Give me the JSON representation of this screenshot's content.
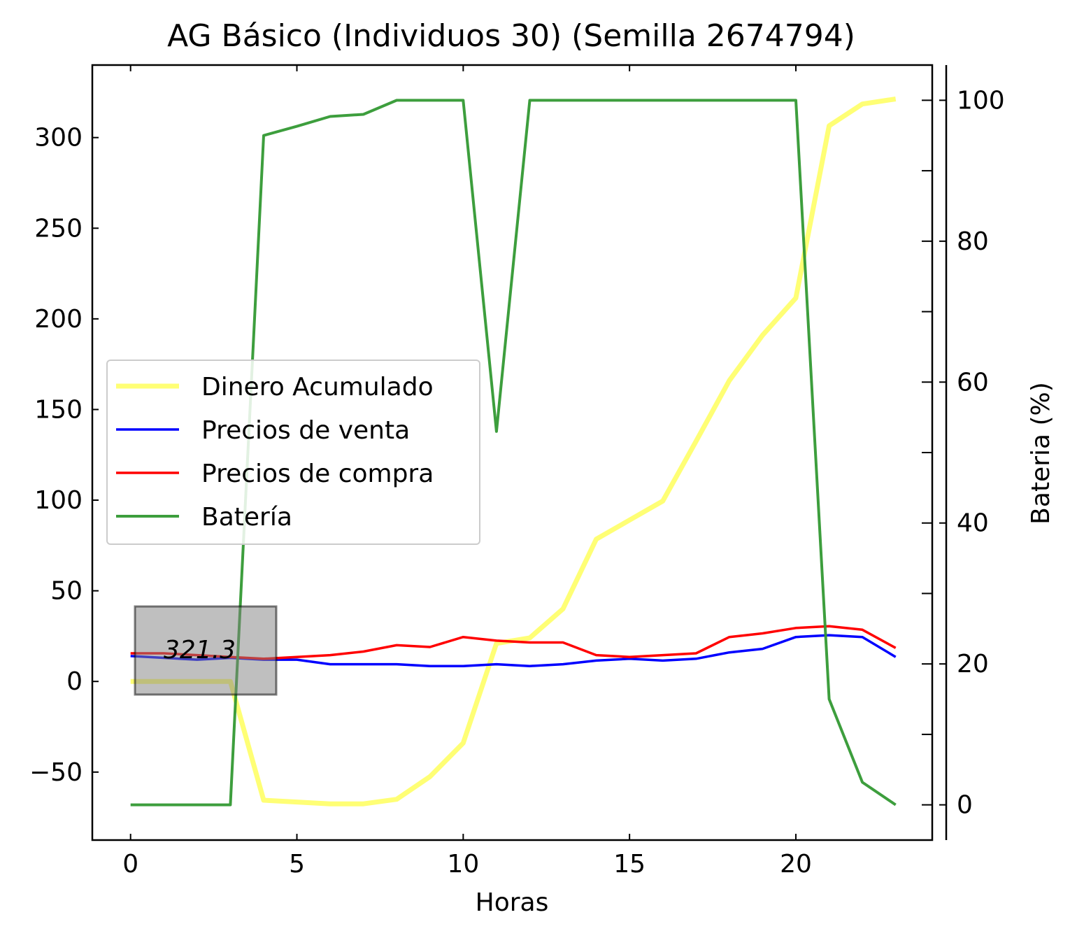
{
  "chart_data": {
    "type": "line",
    "title": "AG Básico (Individuos 30) (Semilla 2674794)",
    "xlabel": "Horas",
    "ylabel": "",
    "y2label": "Bateria (%)",
    "xlim": [
      -1.15,
      24.1
    ],
    "ylim": [
      -87.5,
      340
    ],
    "y2lim": [
      -5,
      105
    ],
    "xticks": [
      0,
      5,
      10,
      15,
      20
    ],
    "yticks": [
      -50,
      0,
      50,
      100,
      150,
      200,
      250,
      300
    ],
    "y2ticks": [
      0,
      20,
      40,
      60,
      80,
      100
    ],
    "y2minor_ticks": [
      10,
      30,
      50,
      70,
      90
    ],
    "x": [
      0,
      1,
      2,
      3,
      4,
      5,
      6,
      7,
      8,
      9,
      10,
      11,
      12,
      13,
      14,
      15,
      16,
      17,
      18,
      19,
      20,
      21,
      22,
      23
    ],
    "series": [
      {
        "name": "Dinero Acumulado",
        "axis": "left",
        "color": "#ffff66",
        "values": [
          0,
          0,
          0,
          0,
          -65.5,
          -66.5,
          -67.5,
          -67.5,
          -65,
          -52.5,
          -34,
          21,
          24,
          40,
          78.5,
          89,
          99.5,
          132.5,
          166,
          191,
          211.5,
          306.5,
          318.5,
          321.3
        ]
      },
      {
        "name": "Precios de venta",
        "axis": "left",
        "color": "#0000ff",
        "values": [
          14,
          13,
          12,
          13,
          12,
          12,
          9.5,
          9.5,
          9.5,
          8.5,
          8.5,
          9.5,
          8.5,
          9.5,
          11.5,
          12.5,
          11.5,
          12.5,
          16,
          18,
          24.5,
          25.5,
          24.5,
          13.5
        ]
      },
      {
        "name": "Precios de compra",
        "axis": "left",
        "color": "#ff0000",
        "values": [
          15.5,
          15.5,
          14.5,
          13.5,
          12.5,
          13.5,
          14.5,
          16.5,
          20,
          19,
          24.5,
          22.5,
          21.5,
          21.5,
          14.5,
          13.5,
          14.5,
          15.5,
          24.5,
          26.5,
          29.5,
          30.5,
          28.5,
          18.5
        ]
      },
      {
        "name": "Batería",
        "axis": "right",
        "color": "#339933",
        "values": [
          0,
          0,
          0,
          0,
          95,
          96.3,
          97.7,
          98,
          100,
          100,
          100,
          53,
          100,
          100,
          100,
          100,
          100,
          100,
          100,
          100,
          100,
          15,
          3.2,
          0
        ]
      }
    ],
    "annotation": {
      "text": "321.3",
      "box_color": "#808080",
      "x": 0.1,
      "y": 0.1
    },
    "legend": {
      "placement": "center-left",
      "entries": [
        "Dinero Acumulado",
        "Precios de venta",
        "Precios de compra",
        "Batería"
      ]
    },
    "grid": false
  }
}
